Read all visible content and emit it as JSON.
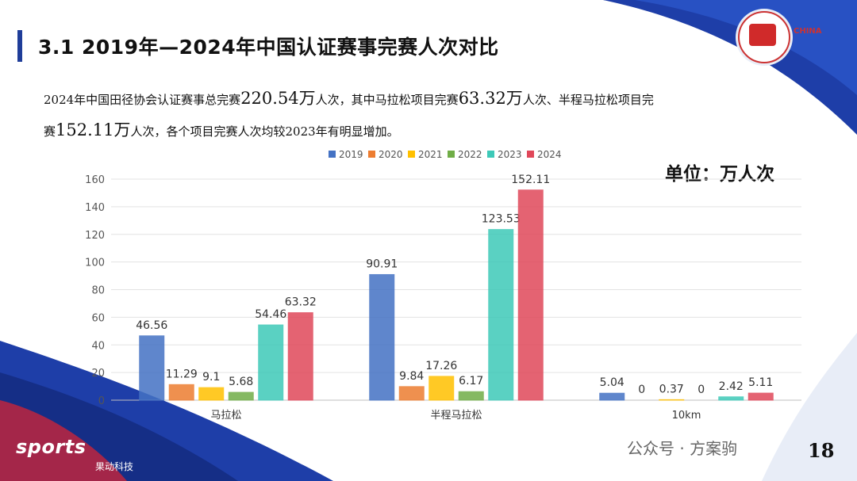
{
  "header": {
    "title": "3.1 2019年—2024年中国认证赛事完赛人次对比",
    "line1_a": "2024年中国田径协会认证赛事总完赛",
    "line1_b": "220.54万",
    "line1_c": "人次，其中马拉松项目完赛",
    "line1_d": "63.32万",
    "line1_e": "人次、半程马拉松项目完",
    "line2_a": "赛",
    "line2_b": "152.11万",
    "line2_c": "人次，各个项目完赛人次均较2023年有明显增加。"
  },
  "unit_label": "单位：万人次",
  "footer": {
    "brand": "sports",
    "brand_sub": "果动科技",
    "wechat": "公众号 · 方案驹",
    "page_number": "18"
  },
  "colors": {
    "title_accent": "#1f3d99",
    "series": [
      "#4472c4",
      "#ed7d31",
      "#ffc000",
      "#70ad47",
      "#3ec9b8",
      "#e0485a"
    ]
  },
  "chart_data": {
    "type": "bar",
    "categories": [
      "马拉松",
      "半程马拉松",
      "10km"
    ],
    "series": [
      {
        "name": "2019",
        "values": [
          46.56,
          90.91,
          5.04
        ]
      },
      {
        "name": "2020",
        "values": [
          11.29,
          9.84,
          0
        ]
      },
      {
        "name": "2021",
        "values": [
          9.1,
          17.26,
          0.37
        ]
      },
      {
        "name": "2022",
        "values": [
          5.68,
          6.17,
          0
        ]
      },
      {
        "name": "2023",
        "values": [
          54.46,
          123.53,
          2.42
        ]
      },
      {
        "name": "2024",
        "values": [
          63.32,
          152.11,
          5.11
        ]
      }
    ],
    "ylim": [
      0,
      160
    ],
    "yticks": [
      0,
      20,
      40,
      60,
      80,
      100,
      120,
      140,
      160
    ],
    "grid": true,
    "legend_position": "top",
    "data_labels": true
  }
}
